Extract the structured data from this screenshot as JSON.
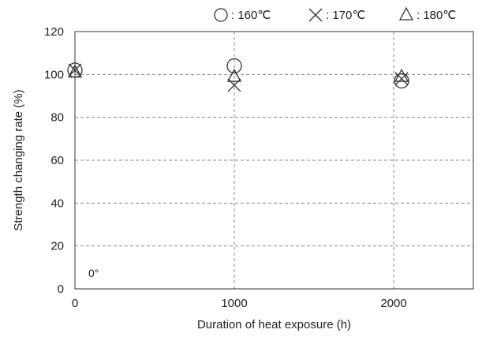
{
  "chart_data": {
    "type": "scatter",
    "title": "",
    "xlabel": "Duration of heat exposure (h)",
    "ylabel": "Strength changing rate (%)",
    "xlim": [
      0,
      2500
    ],
    "ylim": [
      0,
      120
    ],
    "xticks": [
      0,
      1000,
      2000
    ],
    "yticks": [
      0,
      20,
      40,
      60,
      80,
      100,
      120
    ],
    "grid": true,
    "legend_position": "top-right",
    "annotation": "0°",
    "series": [
      {
        "name": ": 160℃",
        "marker": "circle",
        "x": [
          0,
          1000,
          2050
        ],
        "y": [
          102,
          104,
          97
        ]
      },
      {
        "name": ": 170℃",
        "marker": "x",
        "x": [
          0,
          1000,
          2050
        ],
        "y": [
          102,
          95,
          98
        ]
      },
      {
        "name": ": 180℃",
        "marker": "triangle",
        "x": [
          0,
          1000,
          2050
        ],
        "y": [
          101,
          99,
          99
        ]
      }
    ],
    "colors": {
      "marker": "#333333",
      "grid": "#888888",
      "frame": "#333333"
    }
  }
}
